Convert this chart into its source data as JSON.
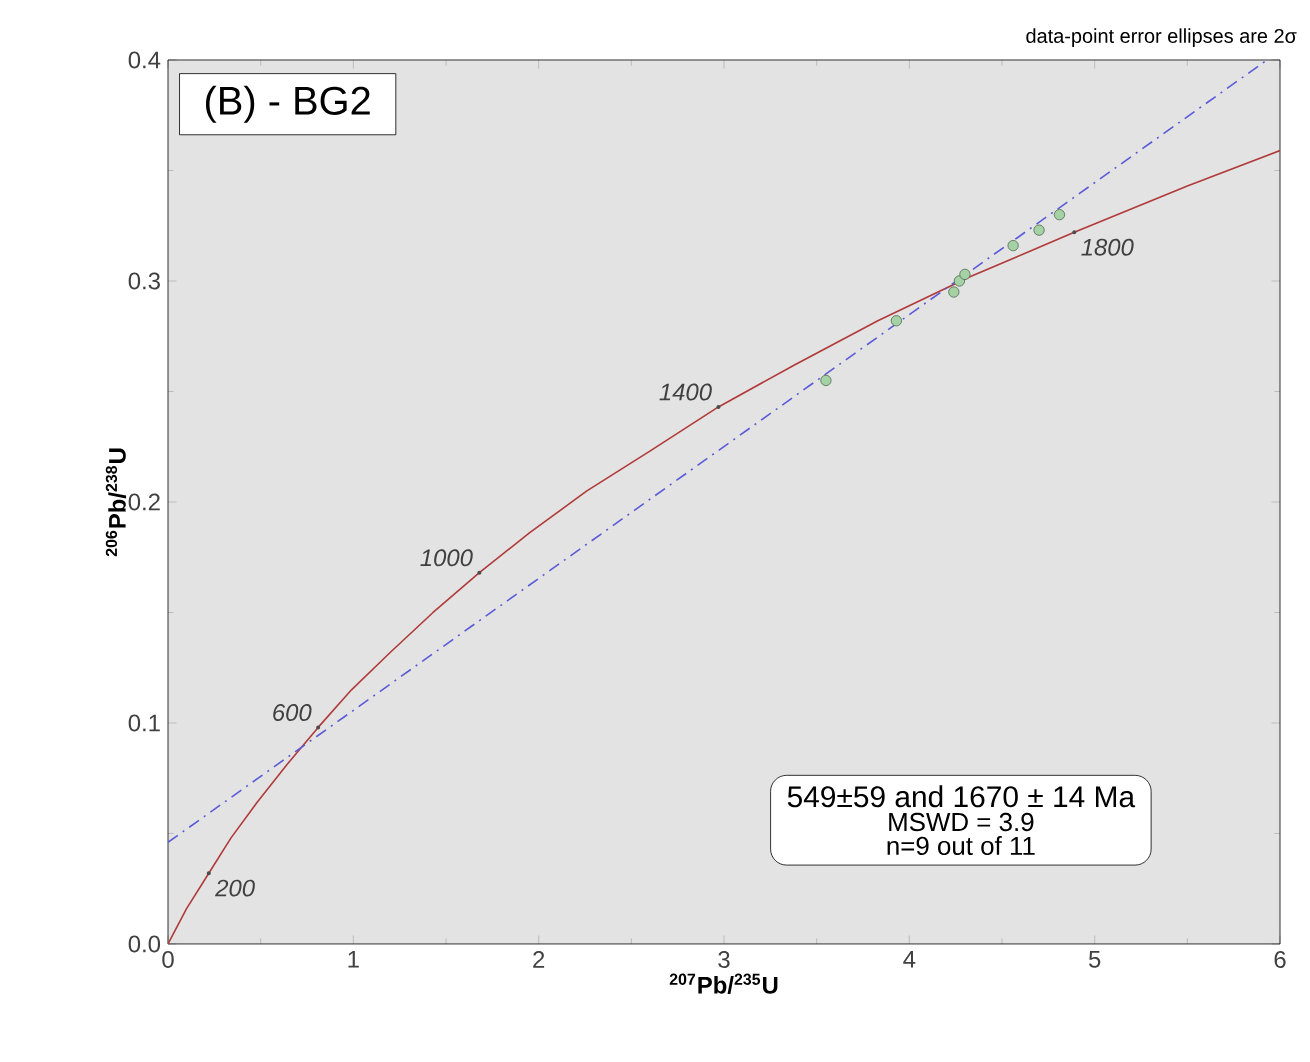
{
  "chart_data": {
    "type": "line",
    "title": "(B) - BG2",
    "xlabel": "$^{207}$Pb/$^{235}$U",
    "ylabel": "$^{206}$Pb/$^{238}$U",
    "xlim": [
      0,
      6
    ],
    "ylim": [
      0,
      0.4
    ],
    "xticks": [
      0,
      1,
      2,
      3,
      4,
      5,
      6
    ],
    "yticks": [
      {
        "value": 0,
        "label": "0.0"
      },
      0.1,
      0.2,
      0.3,
      0.4
    ],
    "series": [
      {
        "color": "#b03a3a",
        "marker": "none",
        "line_style": "solid",
        "x": [
          0,
          0.1,
          0.22,
          0.34,
          0.48,
          0.64,
          0.81,
          0.99,
          1.2,
          1.43,
          1.68,
          1.95,
          2.26,
          2.6,
          2.97,
          3.38,
          3.83,
          4.33,
          4.89,
          5.5,
          6
        ],
        "values": [
          0,
          0.016,
          0.032,
          0.048,
          0.064,
          0.081,
          0.098,
          0.115,
          0.132,
          0.15,
          0.168,
          0.186,
          0.205,
          0.223,
          0.243,
          0.262,
          0.282,
          0.302,
          0.322,
          0.343,
          0.359
        ]
      },
      {
        "color": "#5a5ad8",
        "marker": "none",
        "line_style": "dashed",
        "x": [
          0,
          5.93
        ],
        "values": [
          0.046,
          0.4
        ]
      },
      {
        "type": "scatter",
        "color": "#a5d2a5",
        "marker": "circle",
        "x": [
          3.55,
          3.93,
          4.24,
          4.27,
          4.3,
          4.56,
          4.7,
          4.81
        ],
        "values": [
          0.255,
          0.282,
          0.295,
          0.3,
          0.303,
          0.316,
          0.323,
          0.33
        ]
      }
    ],
    "annotations": [
      {
        "text": "200",
        "x": 0.22,
        "y": 0.032
      },
      {
        "text": "600",
        "x": 0.81,
        "y": 0.098
      },
      {
        "text": "1000",
        "x": 1.68,
        "y": 0.168
      },
      {
        "text": "1400",
        "x": 2.97,
        "y": 0.243
      },
      {
        "text": "1800",
        "x": 4.89,
        "y": 0.322
      },
      "data-point error ellipses are 2σ",
      "549±59 and 1670 ± 14 Ma",
      "MSWD = 3.9",
      "n=9 out of 11"
    ]
  }
}
